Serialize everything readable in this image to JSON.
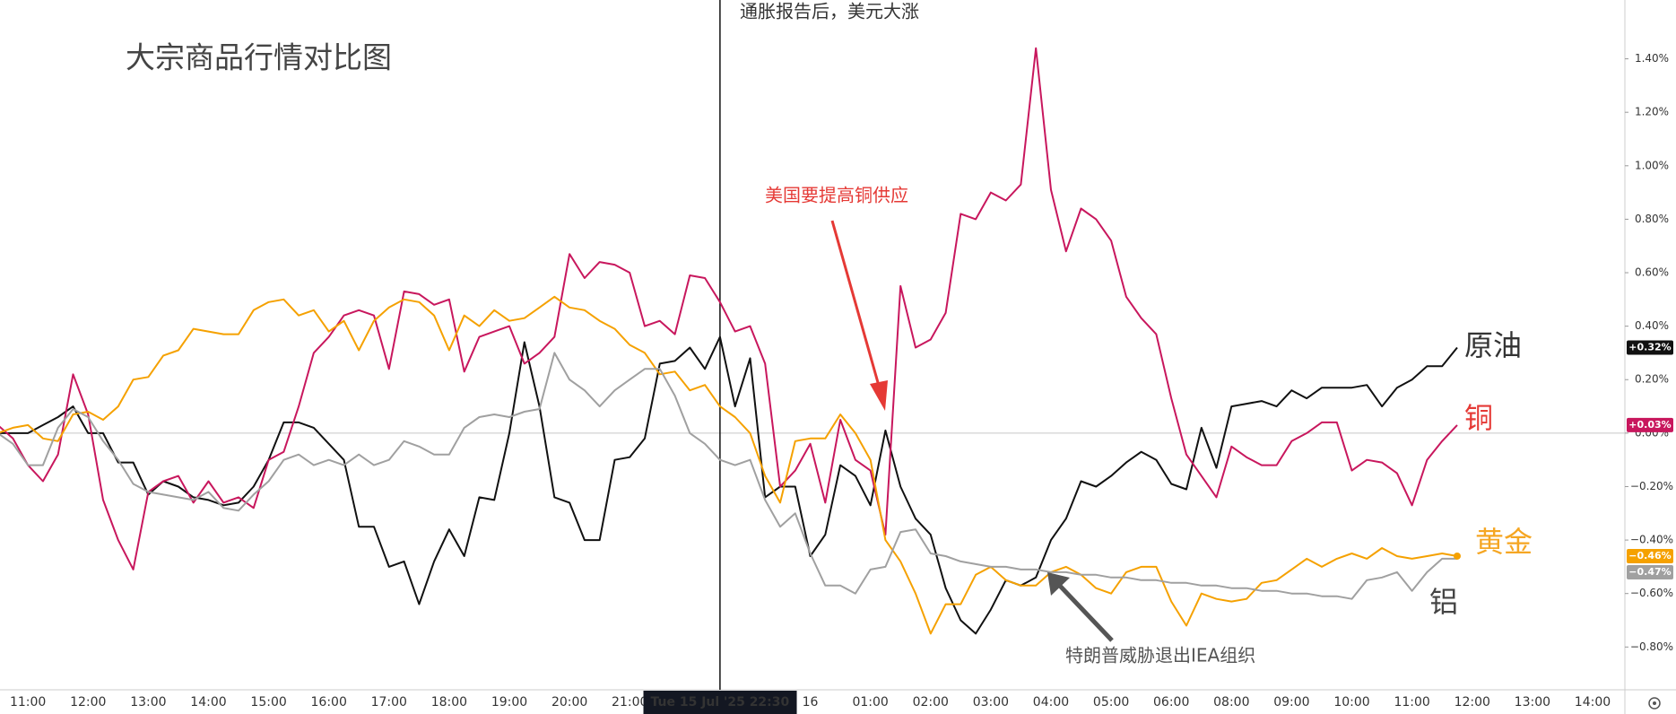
{
  "chart_data": {
    "type": "line",
    "title": "大宗商品行情对比图",
    "annotations": [
      "通胀报告后，美元大涨",
      "美国要提高铜供应",
      "特朗普威胁退出IEA组织"
    ],
    "vline_index": 48,
    "categories": [
      null,
      null,
      "11:00",
      null,
      null,
      null,
      "12:00",
      null,
      null,
      null,
      "13:00",
      null,
      null,
      null,
      "14:00",
      null,
      null,
      null,
      "15:00",
      null,
      null,
      null,
      "16:00",
      null,
      null,
      null,
      "17:00",
      null,
      null,
      null,
      "18:00",
      null,
      null,
      null,
      "19:00",
      null,
      null,
      null,
      "20:00",
      null,
      null,
      null,
      "21:00",
      null,
      null,
      null,
      null,
      null,
      "Tue 15 Jul '25 22:30",
      null,
      null,
      null,
      null,
      null,
      "16",
      null,
      null,
      null,
      "01:00",
      null,
      null,
      null,
      "02:00",
      null,
      null,
      null,
      "03:00",
      null,
      null,
      null,
      "04:00",
      null,
      null,
      null,
      "05:00",
      null,
      null,
      null,
      "06:00",
      null,
      null,
      null,
      "08:00",
      null,
      null,
      null,
      "09:00",
      null,
      null,
      null,
      "10:00",
      null,
      null,
      null,
      "11:00",
      null,
      null,
      null,
      "12:00",
      null,
      null,
      null,
      "13:00",
      null,
      null,
      null,
      "14:00"
    ],
    "ylim": [
      -0.96,
      1.62
    ],
    "yticks": [
      {
        "value": -0.8,
        "label": "−0.80%"
      },
      {
        "value": -0.6,
        "label": "−0.60%"
      },
      {
        "value": -0.4,
        "label": "−0.40%"
      },
      {
        "value": -0.2,
        "label": "−0.20%"
      },
      {
        "value": 0,
        "label": "0.00%"
      },
      {
        "value": 0.2,
        "label": "0.20%"
      },
      {
        "value": 0.4,
        "label": "0.40%"
      },
      {
        "value": 0.6,
        "label": "0.60%"
      },
      {
        "value": 0.8,
        "label": "0.80%"
      },
      {
        "value": 1.0,
        "label": "1.00%"
      },
      {
        "value": 1.2,
        "label": "1.20%"
      },
      {
        "value": 1.4,
        "label": "1.40%"
      }
    ],
    "grid": false,
    "series": [
      {
        "name": "原油",
        "color": "#111111",
        "label_color": "#333333",
        "end_label": "+0.32%",
        "values": [
          0.0,
          0.0,
          0.0,
          0.03,
          0.06,
          0.1,
          0.0,
          0.0,
          -0.11,
          -0.11,
          -0.23,
          -0.18,
          -0.2,
          -0.24,
          -0.25,
          -0.27,
          -0.26,
          -0.2,
          -0.1,
          0.04,
          0.04,
          0.02,
          -0.04,
          -0.1,
          -0.35,
          -0.35,
          -0.5,
          -0.48,
          -0.64,
          -0.48,
          -0.36,
          -0.46,
          -0.24,
          -0.25,
          0.0,
          0.34,
          0.1,
          -0.24,
          -0.26,
          -0.4,
          -0.4,
          -0.1,
          -0.09,
          -0.02,
          0.26,
          0.27,
          0.32,
          0.24,
          0.36,
          0.1,
          0.28,
          -0.24,
          -0.2,
          -0.2,
          -0.46,
          -0.38,
          -0.12,
          -0.16,
          -0.27,
          0.01,
          -0.2,
          -0.32,
          -0.38,
          -0.58,
          -0.7,
          -0.75,
          -0.66,
          -0.55,
          -0.57,
          -0.54,
          -0.4,
          -0.32,
          -0.18,
          -0.2,
          -0.16,
          -0.11,
          -0.07,
          -0.1,
          -0.19,
          -0.21,
          0.02,
          -0.13,
          0.1,
          0.11,
          0.12,
          0.1,
          0.16,
          0.13,
          0.17,
          0.17,
          0.17,
          0.18,
          0.1,
          0.17,
          0.2,
          0.25,
          0.25,
          0.32,
          null,
          null,
          null,
          null,
          null,
          null,
          null,
          null,
          null
        ]
      },
      {
        "name": "铜",
        "color": "#c8175d",
        "label_color": "#e53935",
        "end_label": "+0.03%",
        "values": [
          0.03,
          -0.02,
          -0.12,
          -0.18,
          -0.08,
          0.22,
          0.07,
          -0.25,
          -0.4,
          -0.51,
          -0.22,
          -0.18,
          -0.16,
          -0.26,
          -0.18,
          -0.26,
          -0.24,
          -0.28,
          -0.1,
          -0.07,
          0.1,
          0.3,
          0.36,
          0.44,
          0.46,
          0.44,
          0.24,
          0.53,
          0.52,
          0.48,
          0.5,
          0.23,
          0.36,
          0.38,
          0.4,
          0.26,
          0.3,
          0.36,
          0.67,
          0.58,
          0.64,
          0.63,
          0.6,
          0.4,
          0.42,
          0.37,
          0.59,
          0.58,
          0.49,
          0.38,
          0.4,
          0.26,
          -0.2,
          -0.14,
          -0.04,
          -0.26,
          0.05,
          -0.1,
          -0.14,
          -0.38,
          0.55,
          0.32,
          0.35,
          0.45,
          0.82,
          0.8,
          0.9,
          0.87,
          0.93,
          1.44,
          0.91,
          0.68,
          0.84,
          0.8,
          0.72,
          0.51,
          0.43,
          0.37,
          0.13,
          -0.08,
          -0.16,
          -0.24,
          -0.05,
          -0.09,
          -0.12,
          -0.12,
          -0.03,
          0.0,
          0.04,
          0.04,
          -0.14,
          -0.1,
          -0.11,
          -0.15,
          -0.27,
          -0.1,
          -0.03,
          0.03,
          null,
          null,
          null,
          null,
          null,
          null,
          null,
          null,
          null
        ]
      },
      {
        "name": "黄金",
        "color": "#f5a100",
        "label_color": "#f5a623",
        "end_label": "−0.46%",
        "values": [
          0.0,
          0.02,
          0.03,
          -0.02,
          -0.03,
          0.07,
          0.08,
          0.05,
          0.1,
          0.2,
          0.21,
          0.29,
          0.31,
          0.39,
          0.38,
          0.37,
          0.37,
          0.46,
          0.49,
          0.5,
          0.44,
          0.46,
          0.38,
          0.42,
          0.31,
          0.42,
          0.47,
          0.5,
          0.49,
          0.44,
          0.31,
          0.44,
          0.4,
          0.46,
          0.42,
          0.43,
          0.47,
          0.51,
          0.47,
          0.46,
          0.42,
          0.39,
          0.33,
          0.3,
          0.22,
          0.23,
          0.16,
          0.18,
          0.1,
          0.06,
          0.0,
          -0.16,
          -0.26,
          -0.03,
          -0.02,
          -0.02,
          0.07,
          0.0,
          -0.1,
          -0.4,
          -0.48,
          -0.6,
          -0.75,
          -0.64,
          -0.64,
          -0.53,
          -0.5,
          -0.55,
          -0.57,
          -0.57,
          -0.52,
          -0.5,
          -0.53,
          -0.58,
          -0.6,
          -0.52,
          -0.5,
          -0.5,
          -0.63,
          -0.72,
          -0.6,
          -0.62,
          -0.63,
          -0.62,
          -0.56,
          -0.55,
          -0.51,
          -0.47,
          -0.5,
          -0.47,
          -0.45,
          -0.47,
          -0.43,
          -0.46,
          -0.47,
          -0.46,
          -0.45,
          -0.46,
          null,
          null,
          null,
          null,
          null,
          null,
          null,
          null,
          null
        ]
      },
      {
        "name": "铝",
        "color": "#a0a0a0",
        "label_color": "#444444",
        "end_label": "−0.47%",
        "values": [
          0.0,
          -0.04,
          -0.12,
          -0.12,
          0.02,
          0.09,
          0.06,
          -0.03,
          -0.1,
          -0.19,
          -0.22,
          -0.23,
          -0.24,
          -0.25,
          -0.22,
          -0.28,
          -0.29,
          -0.23,
          -0.18,
          -0.1,
          -0.08,
          -0.12,
          -0.1,
          -0.12,
          -0.08,
          -0.12,
          -0.1,
          -0.03,
          -0.05,
          -0.08,
          -0.08,
          0.02,
          0.06,
          0.07,
          0.06,
          0.08,
          0.09,
          0.3,
          0.2,
          0.16,
          0.1,
          0.16,
          0.2,
          0.24,
          0.24,
          0.14,
          0.0,
          -0.04,
          -0.1,
          -0.12,
          -0.1,
          -0.25,
          -0.35,
          -0.3,
          -0.45,
          -0.57,
          -0.57,
          -0.6,
          -0.51,
          -0.5,
          -0.37,
          -0.36,
          -0.45,
          -0.46,
          -0.48,
          -0.49,
          -0.5,
          -0.5,
          -0.51,
          -0.51,
          -0.52,
          -0.52,
          -0.53,
          -0.53,
          -0.54,
          -0.54,
          -0.55,
          -0.55,
          -0.56,
          -0.56,
          -0.57,
          -0.57,
          -0.58,
          -0.58,
          -0.59,
          -0.59,
          -0.6,
          -0.6,
          -0.61,
          -0.61,
          -0.62,
          -0.55,
          -0.54,
          -0.52,
          -0.59,
          -0.52,
          -0.47,
          -0.47,
          null,
          null,
          null,
          null,
          null,
          null,
          null,
          null,
          null
        ]
      }
    ]
  }
}
